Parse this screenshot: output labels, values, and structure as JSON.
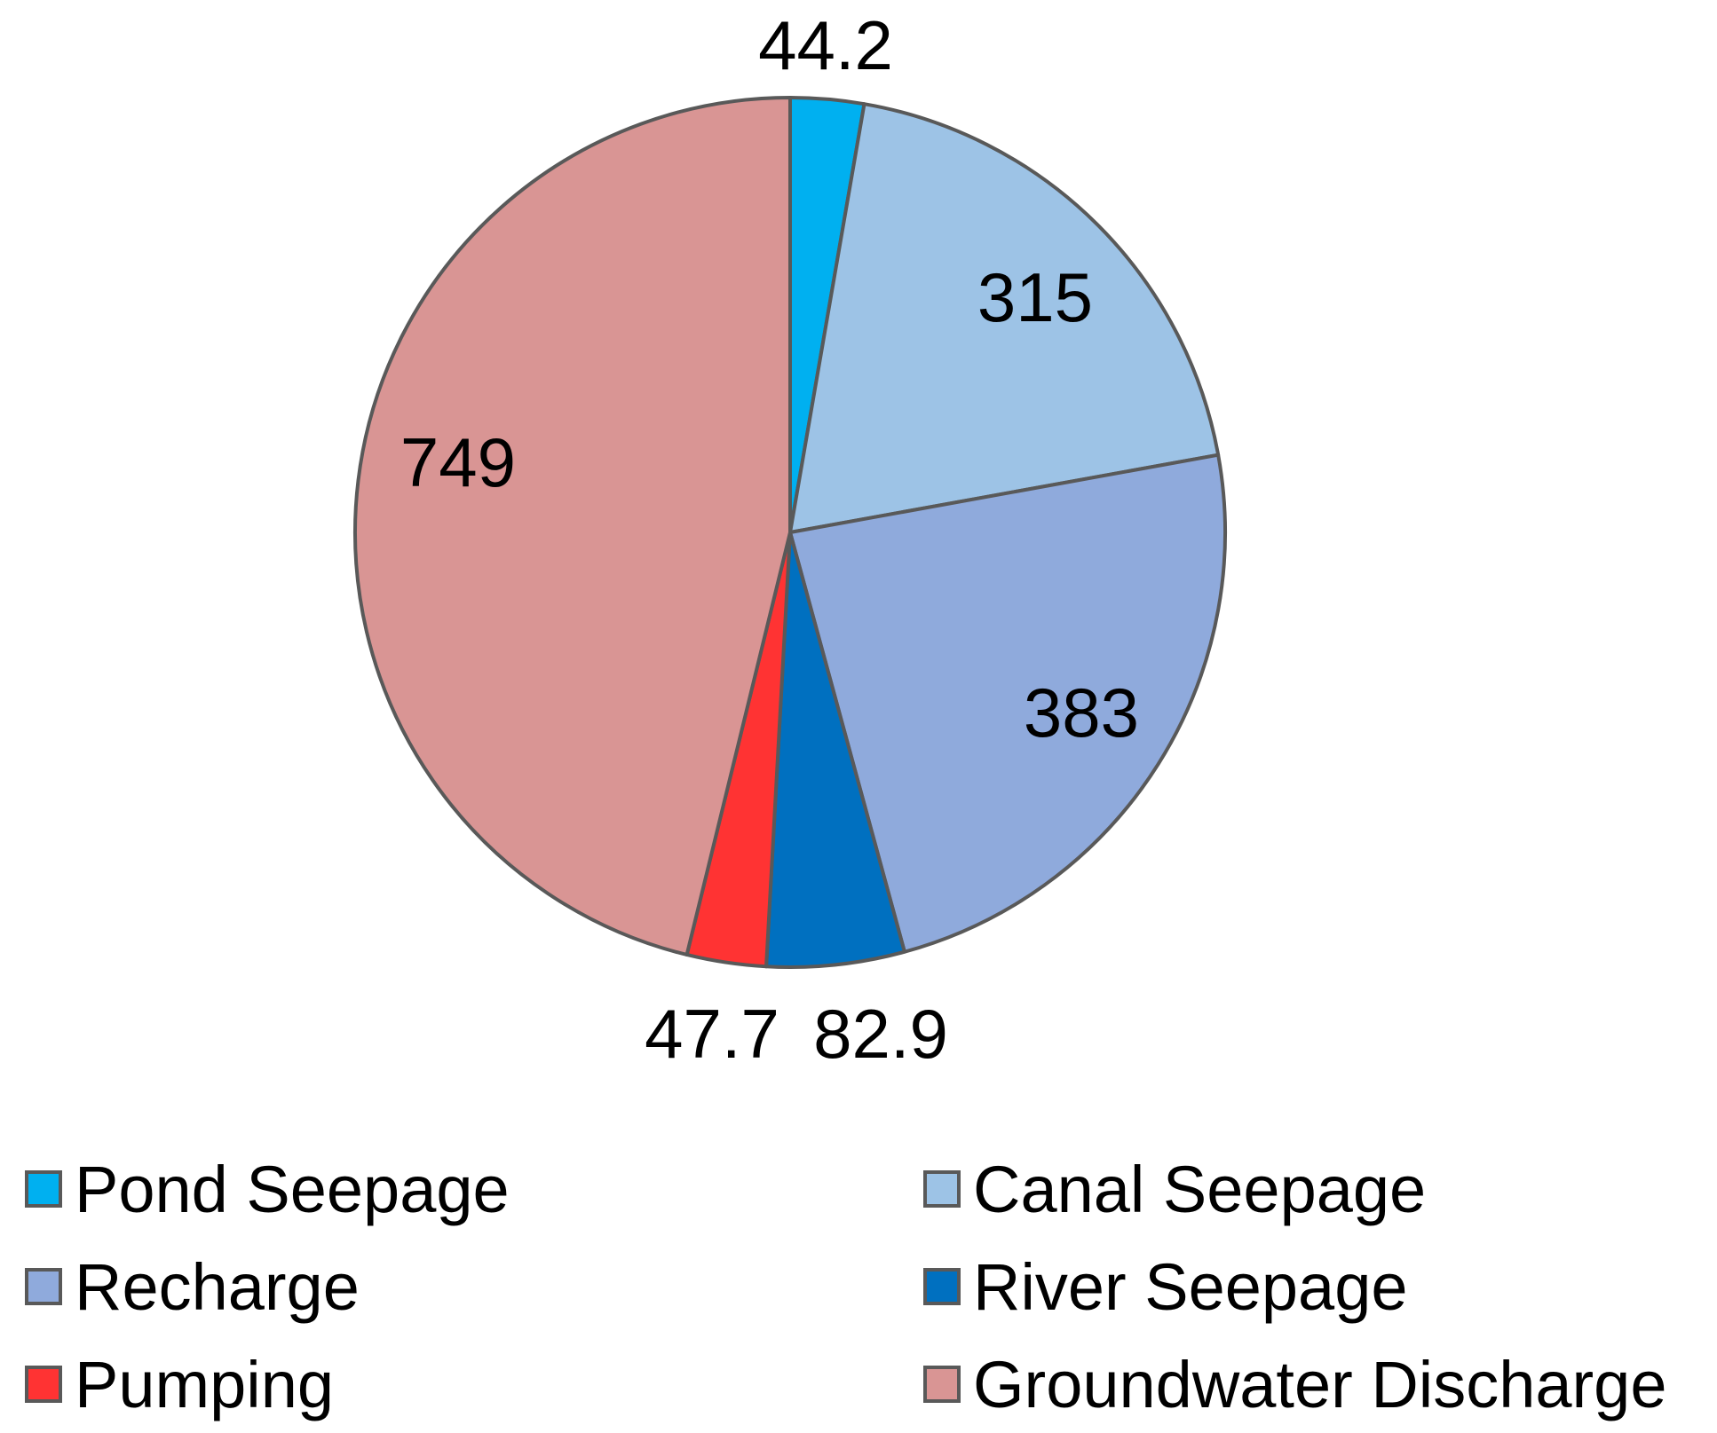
{
  "chart_data": {
    "type": "pie",
    "slices": [
      {
        "name": "Pond Seepage",
        "value": 44.2,
        "color": "#00b0f0"
      },
      {
        "name": "Canal Seepage",
        "value": 315,
        "color": "#9dc3e6"
      },
      {
        "name": "Recharge",
        "value": 383,
        "color": "#8faadc"
      },
      {
        "name": "River Seepage",
        "value": 82.9,
        "color": "#0070c0"
      },
      {
        "name": "Pumping",
        "value": 47.7,
        "color": "#ff3333"
      },
      {
        "name": "Groundwater Discharge",
        "value": 749,
        "color": "#d99594"
      }
    ],
    "legend_placement": "bottom",
    "start": "top",
    "direction": "clockwise",
    "data_labels": [
      "44.2",
      "315",
      "383",
      "82.9",
      "47.7",
      "749"
    ]
  }
}
